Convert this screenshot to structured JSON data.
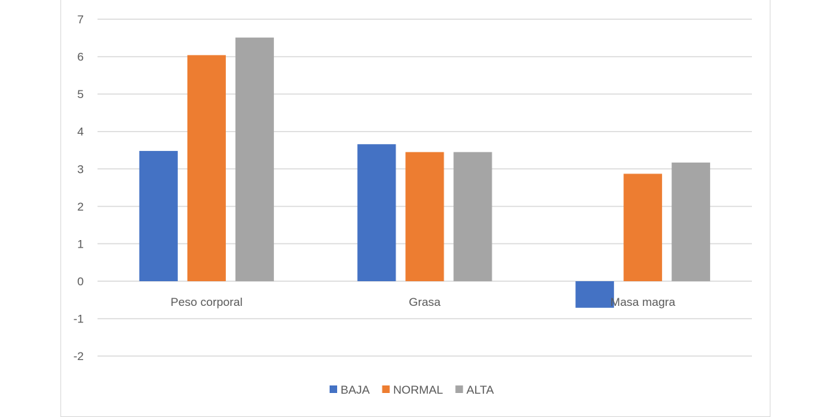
{
  "chart_data": {
    "type": "bar",
    "categories": [
      "Peso corporal",
      "Grasa",
      "Masa magra"
    ],
    "series": [
      {
        "name": "BAJA",
        "color": "#4472c4",
        "values": [
          3.48,
          3.66,
          -0.71
        ]
      },
      {
        "name": "NORMAL",
        "color": "#ed7d31",
        "values": [
          6.04,
          3.45,
          2.87
        ]
      },
      {
        "name": "ALTA",
        "color": "#a5a5a5",
        "values": [
          6.51,
          3.45,
          3.17
        ]
      }
    ],
    "ylim": [
      -2,
      7
    ],
    "yticks": [
      "-2",
      "-1",
      "0",
      "1",
      "2",
      "3",
      "4",
      "5",
      "6",
      "7"
    ],
    "grid": true,
    "legend": "bottom",
    "title": "",
    "xlabel": "",
    "ylabel": ""
  }
}
